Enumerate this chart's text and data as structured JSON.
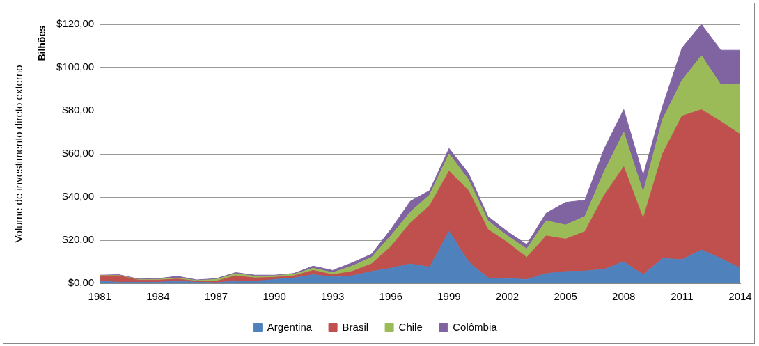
{
  "chart_data": {
    "type": "area",
    "stacked": true,
    "ylabel": "Volume de investimento direto externo",
    "annotations": [
      "Bilhões"
    ],
    "categories": [
      "1981",
      null,
      null,
      "1984",
      null,
      null,
      "1987",
      null,
      null,
      "1990",
      null,
      null,
      "1993",
      null,
      null,
      "1996",
      null,
      null,
      "1999",
      null,
      null,
      "2002",
      null,
      null,
      "2005",
      null,
      null,
      "2008",
      null,
      null,
      "2011",
      null,
      null,
      "2014"
    ],
    "ylim": [
      0,
      120
    ],
    "yticks": [
      {
        "value": 0,
        "label": "$0,00"
      },
      {
        "value": 20,
        "label": "$20,00"
      },
      {
        "value": 40,
        "label": "$40,00"
      },
      {
        "value": 60,
        "label": "$60,00"
      },
      {
        "value": 80,
        "label": "$80,00"
      },
      {
        "value": 100,
        "label": "$100,00"
      },
      {
        "value": 120,
        "label": "$120,00"
      }
    ],
    "grid": "y",
    "legend": "bottom",
    "series": [
      {
        "name": "Argentina",
        "color": "#4f81bd",
        "values": [
          1,
          0.5,
          0.5,
          0.5,
          1,
          0.5,
          0.3,
          1,
          1,
          1.8,
          2.5,
          4,
          3,
          3.5,
          5.5,
          7,
          9,
          7.5,
          24,
          10,
          2.5,
          2.2,
          1.8,
          4.5,
          5.5,
          5.7,
          6.5,
          10,
          4,
          11.5,
          11,
          15.5,
          11.5,
          7
        ]
      },
      {
        "name": "Brasil",
        "color": "#c0504d",
        "values": [
          2.5,
          3,
          1,
          1,
          1,
          0.5,
          0.7,
          2.5,
          1.5,
          1,
          1,
          2,
          1,
          2,
          3.5,
          10,
          19,
          28.5,
          28,
          33,
          22.5,
          16.8,
          10.2,
          17.5,
          15,
          18.3,
          34.5,
          44,
          26,
          48.5,
          66.5,
          65,
          63.5,
          62
        ]
      },
      {
        "name": "Chile",
        "color": "#9bbb59",
        "values": [
          0.1,
          0.2,
          0.2,
          0.3,
          0.5,
          0.3,
          0.8,
          1,
          0.8,
          0.7,
          0.7,
          1,
          1,
          2.5,
          3,
          5,
          5,
          5,
          8,
          5,
          4,
          3,
          4,
          7,
          6.5,
          7,
          11,
          16,
          12,
          16,
          16.5,
          25,
          17,
          23.5
        ]
      },
      {
        "name": "Colômbia",
        "color": "#8064a2",
        "values": [
          0.2,
          0.3,
          0.3,
          0.4,
          0.8,
          0.3,
          0.4,
          0.5,
          0.5,
          0.3,
          0.4,
          1,
          1,
          1.5,
          1.5,
          3,
          5,
          2,
          2.5,
          3,
          2,
          2,
          2,
          3.5,
          10.5,
          7.5,
          10.5,
          10.5,
          8,
          6,
          15,
          14.5,
          16,
          15.5
        ]
      }
    ]
  }
}
